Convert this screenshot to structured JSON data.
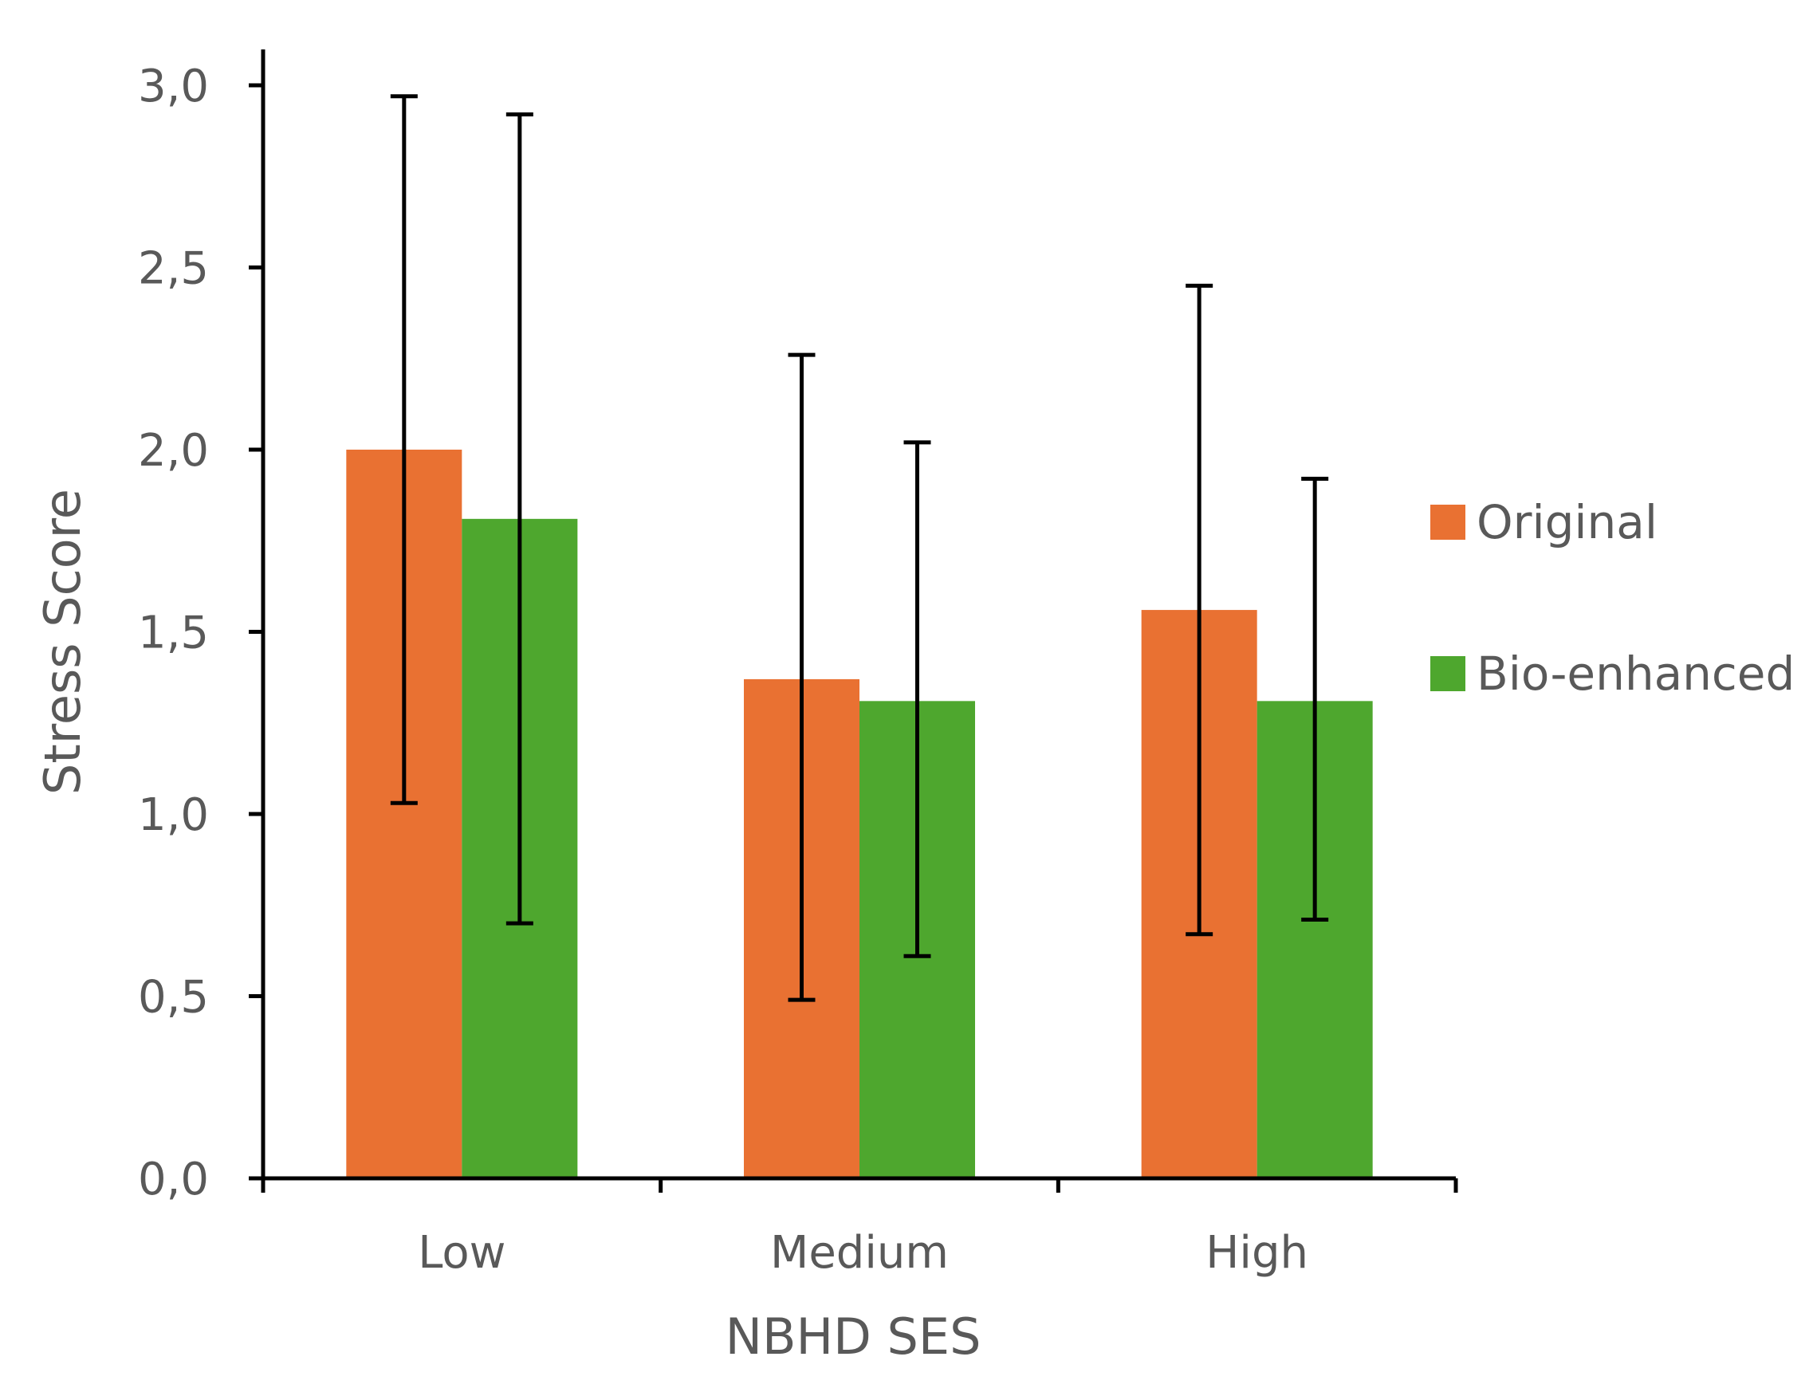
{
  "chart_data": {
    "type": "bar",
    "title": "",
    "xlabel": "NBHD SES",
    "ylabel": "Stress Score",
    "categories": [
      "Low",
      "Medium",
      "High"
    ],
    "ylim": [
      0,
      3
    ],
    "yticks": [
      0,
      0.5,
      1,
      1.5,
      2,
      2.5,
      3
    ],
    "ytick_labels": [
      "0,0",
      "0,5",
      "1,0",
      "1,5",
      "2,0",
      "2,5",
      "3,0"
    ],
    "grid": false,
    "legend_position": "right",
    "series": [
      {
        "name": "Original",
        "color": "#E97132",
        "values": [
          2.0,
          1.37,
          1.56
        ],
        "error_low": [
          1.03,
          0.49,
          0.67
        ],
        "error_high": [
          2.97,
          2.26,
          2.45
        ]
      },
      {
        "name": "Bio-enhanced",
        "color": "#4EA72E",
        "values": [
          1.81,
          1.31,
          1.31
        ],
        "error_low": [
          0.7,
          0.61,
          0.71
        ],
        "error_high": [
          2.92,
          2.02,
          1.92
        ]
      }
    ]
  }
}
